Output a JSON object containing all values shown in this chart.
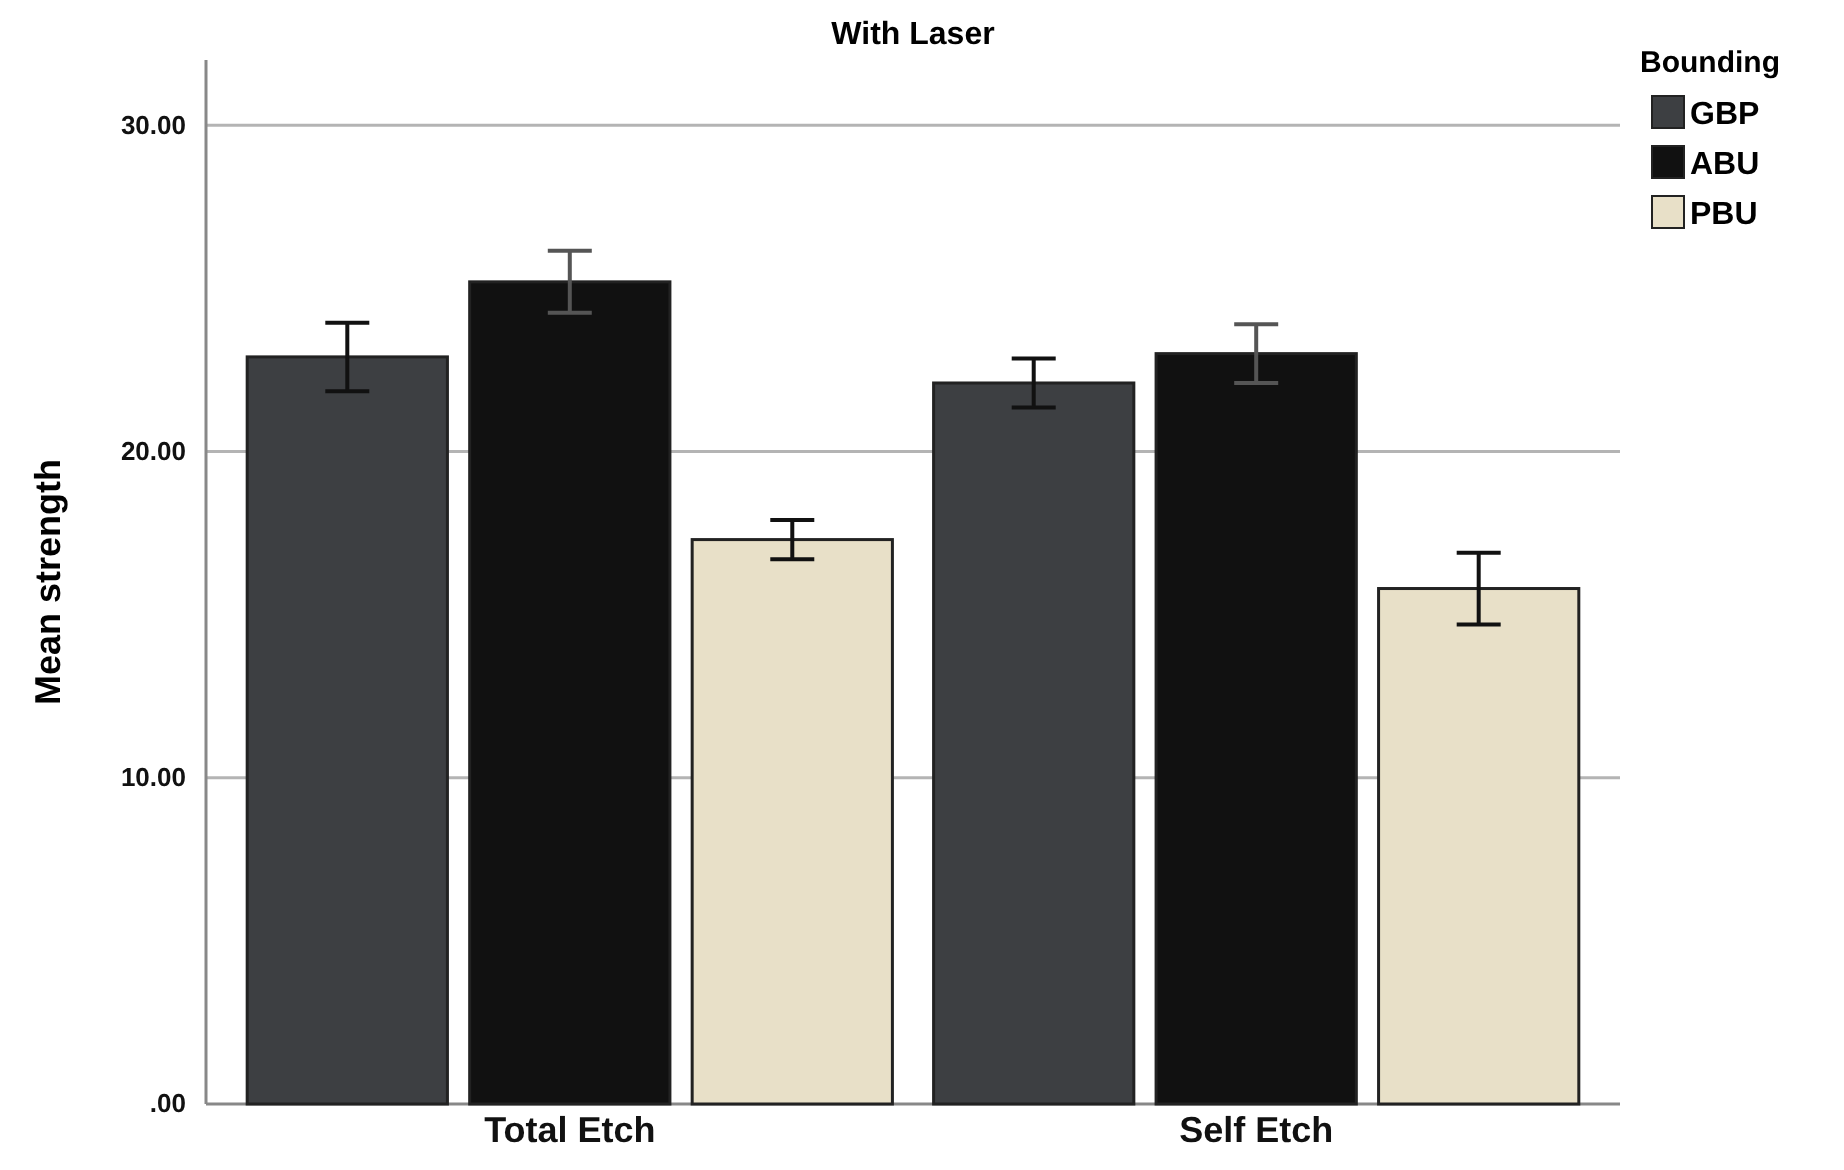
{
  "chart_data": {
    "type": "bar",
    "title": "With Laser",
    "ylabel": "Mean strength",
    "legend_title": "Bounding",
    "categories": [
      "Total Etch",
      "Self Etch"
    ],
    "series": [
      {
        "name": "GBP",
        "color": "#3d3f42",
        "values": [
          22.9,
          22.1
        ],
        "errors": [
          1.05,
          0.75
        ]
      },
      {
        "name": "ABU",
        "color": "#111111",
        "values": [
          25.2,
          23.0
        ],
        "errors": [
          0.95,
          0.9
        ]
      },
      {
        "name": "PBU",
        "color": "#e8e0c8",
        "values": [
          17.3,
          15.8
        ],
        "errors": [
          0.6,
          1.1
        ]
      }
    ],
    "ylim": [
      0,
      32
    ],
    "yticks": [
      {
        "value": 0,
        "label": ".00"
      },
      {
        "value": 10,
        "label": "10.00"
      },
      {
        "value": 20,
        "label": "20.00"
      },
      {
        "value": 30,
        "label": "30.00"
      }
    ],
    "grid": "y",
    "legend": "top right"
  }
}
